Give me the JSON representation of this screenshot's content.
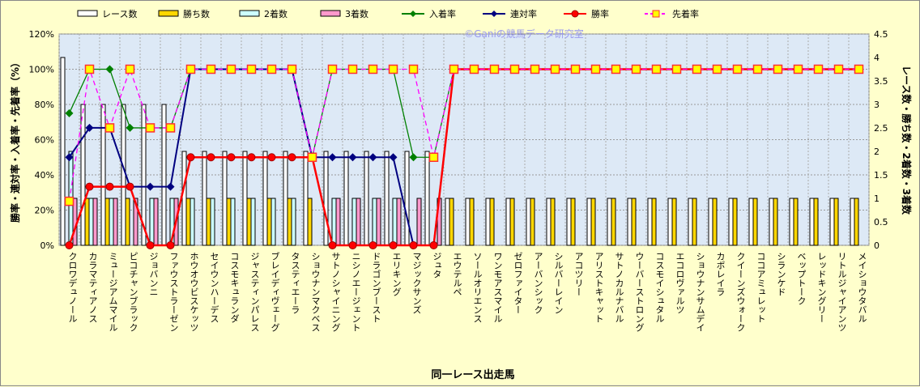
{
  "chart_data": {
    "type": "bar+line",
    "watermark": "©Ganiの競馬データ研究室",
    "xlabel": "同一レース出走馬",
    "ylabel_left": "勝率・連対率・入着率・先着率（%）",
    "ylabel_right": "レース数・勝ち数・2着数・3着数",
    "ylim_left": [
      0,
      120
    ],
    "yticks_left": [
      "0%",
      "20%",
      "40%",
      "60%",
      "80%",
      "100%",
      "120%"
    ],
    "ylim_right": [
      0,
      4.5
    ],
    "yticks_right": [
      "0",
      "0.5",
      "1",
      "1.5",
      "2",
      "2.5",
      "3",
      "3.5",
      "4",
      "4.5"
    ],
    "grid": true,
    "legend_position": "top",
    "categories": [
      "クロワデュノール",
      "カラマティアノス",
      "ミュージアムマイル",
      "ピコチャンブラック",
      "ジョバンニ",
      "ファウストラーゼン",
      "ホウオウビスケッツ",
      "セイウンハーデス",
      "コスモキュランダ",
      "ジャスティンパレス",
      "ブレイディヴェーグ",
      "タスティエーラ",
      "ショウナンマクベス",
      "サトノシャイニング",
      "ニシノエージェント",
      "ドラゴンブースト",
      "エリキング",
      "マジックサンズ",
      "ジュタ",
      "エウテルペ",
      "ソールオリエンス",
      "ワンモアスマイル",
      "ゼロファイター",
      "アーバンシック",
      "シルバーレイン",
      "アコツリー",
      "アリストキャット",
      "サトノカルナバル",
      "ウーバーストロング",
      "コスモイシュタル",
      "エコロヴァルツ",
      "ショウナンサムデイ",
      "カポレイラ",
      "クイーンズウォーク",
      "ココアミュレット",
      "シランケド",
      "ベップトーク",
      "レッドキングリー",
      "リトルジャイアンツ",
      "メイショウタバル"
    ],
    "bar_series": [
      {
        "name": "レース数",
        "axis": "right",
        "color": "#FFFFFF",
        "values": [
          4,
          3,
          3,
          3,
          3,
          3,
          2,
          2,
          2,
          2,
          2,
          2,
          2,
          2,
          2,
          2,
          2,
          2,
          2,
          1,
          1,
          1,
          1,
          1,
          1,
          1,
          1,
          1,
          1,
          1,
          1,
          1,
          1,
          1,
          1,
          1,
          1,
          1,
          1,
          1
        ]
      },
      {
        "name": "勝ち数",
        "axis": "right",
        "color": "#FFD700",
        "values": [
          0,
          1,
          1,
          1,
          0,
          0,
          1,
          1,
          1,
          1,
          1,
          1,
          1,
          0,
          0,
          0,
          0,
          0,
          0,
          1,
          1,
          1,
          1,
          1,
          1,
          1,
          1,
          1,
          1,
          1,
          1,
          1,
          1,
          1,
          1,
          1,
          1,
          1,
          1,
          1
        ]
      },
      {
        "name": "2着数",
        "axis": "right",
        "color": "#CCFFFF",
        "values": [
          2,
          1,
          1,
          0,
          1,
          1,
          1,
          1,
          1,
          1,
          1,
          1,
          0,
          1,
          1,
          1,
          1,
          0,
          0,
          0,
          0,
          0,
          0,
          0,
          0,
          0,
          0,
          0,
          0,
          0,
          0,
          0,
          0,
          0,
          0,
          0,
          0,
          0,
          0,
          0
        ]
      },
      {
        "name": "3着数",
        "axis": "right",
        "color": "#FF99CC",
        "values": [
          1,
          1,
          1,
          1,
          1,
          1,
          0,
          0,
          0,
          0,
          0,
          0,
          0,
          1,
          1,
          1,
          1,
          1,
          1,
          0,
          0,
          0,
          0,
          0,
          0,
          0,
          0,
          0,
          0,
          0,
          0,
          0,
          0,
          0,
          0,
          0,
          0,
          0,
          0,
          0
        ]
      }
    ],
    "line_series": [
      {
        "name": "入着率",
        "axis": "left",
        "color": "#008000",
        "marker": "diamond",
        "dash": false,
        "values": [
          75,
          100,
          100,
          66.7,
          66.7,
          66.7,
          100,
          100,
          100,
          100,
          100,
          100,
          50,
          100,
          100,
          100,
          100,
          50,
          50,
          100,
          100,
          100,
          100,
          100,
          100,
          100,
          100,
          100,
          100,
          100,
          100,
          100,
          100,
          100,
          100,
          100,
          100,
          100,
          100,
          100
        ]
      },
      {
        "name": "連対率",
        "axis": "left",
        "color": "#000080",
        "marker": "diamond",
        "dash": false,
        "values": [
          50,
          66.7,
          66.7,
          33.3,
          33.3,
          33.3,
          100,
          100,
          100,
          100,
          100,
          100,
          50,
          50,
          50,
          50,
          50,
          0,
          0,
          100,
          100,
          100,
          100,
          100,
          100,
          100,
          100,
          100,
          100,
          100,
          100,
          100,
          100,
          100,
          100,
          100,
          100,
          100,
          100,
          100
        ]
      },
      {
        "name": "勝率",
        "axis": "left",
        "color": "#FF0000",
        "marker": "circle",
        "dash": false,
        "values": [
          0,
          33.3,
          33.3,
          33.3,
          0,
          0,
          50,
          50,
          50,
          50,
          50,
          50,
          50,
          0,
          0,
          0,
          0,
          0,
          0,
          100,
          100,
          100,
          100,
          100,
          100,
          100,
          100,
          100,
          100,
          100,
          100,
          100,
          100,
          100,
          100,
          100,
          100,
          100,
          100,
          100
        ]
      },
      {
        "name": "先着率",
        "axis": "left",
        "color": "#FF00FF",
        "marker": "square",
        "dash": true,
        "values": [
          25,
          100,
          66.7,
          100,
          66.7,
          66.7,
          100,
          100,
          100,
          100,
          100,
          100,
          50,
          100,
          100,
          100,
          100,
          100,
          50,
          100,
          100,
          100,
          100,
          100,
          100,
          100,
          100,
          100,
          100,
          100,
          100,
          100,
          100,
          100,
          100,
          100,
          100,
          100,
          100,
          100
        ]
      }
    ]
  }
}
